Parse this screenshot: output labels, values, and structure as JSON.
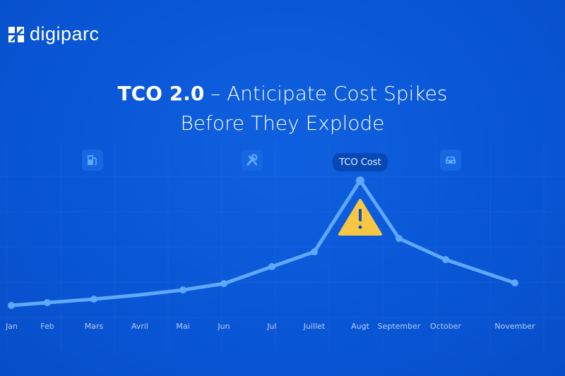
{
  "brand": {
    "name": "digiparc"
  },
  "headline": {
    "bold": "TCO 2.0",
    "rest": " – Anticipate Cost Spikes",
    "line2": "Before They Explode"
  },
  "colors": {
    "background": "#0b58d8",
    "line": "#5ea8ff",
    "warning": "#f7c744"
  },
  "icons": [
    "fuel-pump-icon",
    "wrench-icon",
    "car-icon",
    "warning-icon"
  ],
  "chart_data": {
    "type": "line",
    "title": "",
    "xlabel": "",
    "ylabel": "",
    "categories": [
      "Jan",
      "Feb",
      "Mars",
      "Avril",
      "Mai",
      "Jun",
      "Jul",
      "Juillet",
      "Augt",
      "September",
      "October",
      "November"
    ],
    "series": [
      {
        "name": "TCO Cost",
        "values": [
          27,
          31,
          36,
          42,
          49,
          58,
          82,
          103,
          204,
          122,
          92,
          59
        ]
      }
    ],
    "markers": [
      true,
      true,
      true,
      false,
      true,
      true,
      true,
      true,
      true,
      true,
      true,
      true
    ],
    "peak_label": "TCO Cost",
    "ylim": [
      0,
      230
    ],
    "grid": true,
    "legend": "none"
  }
}
